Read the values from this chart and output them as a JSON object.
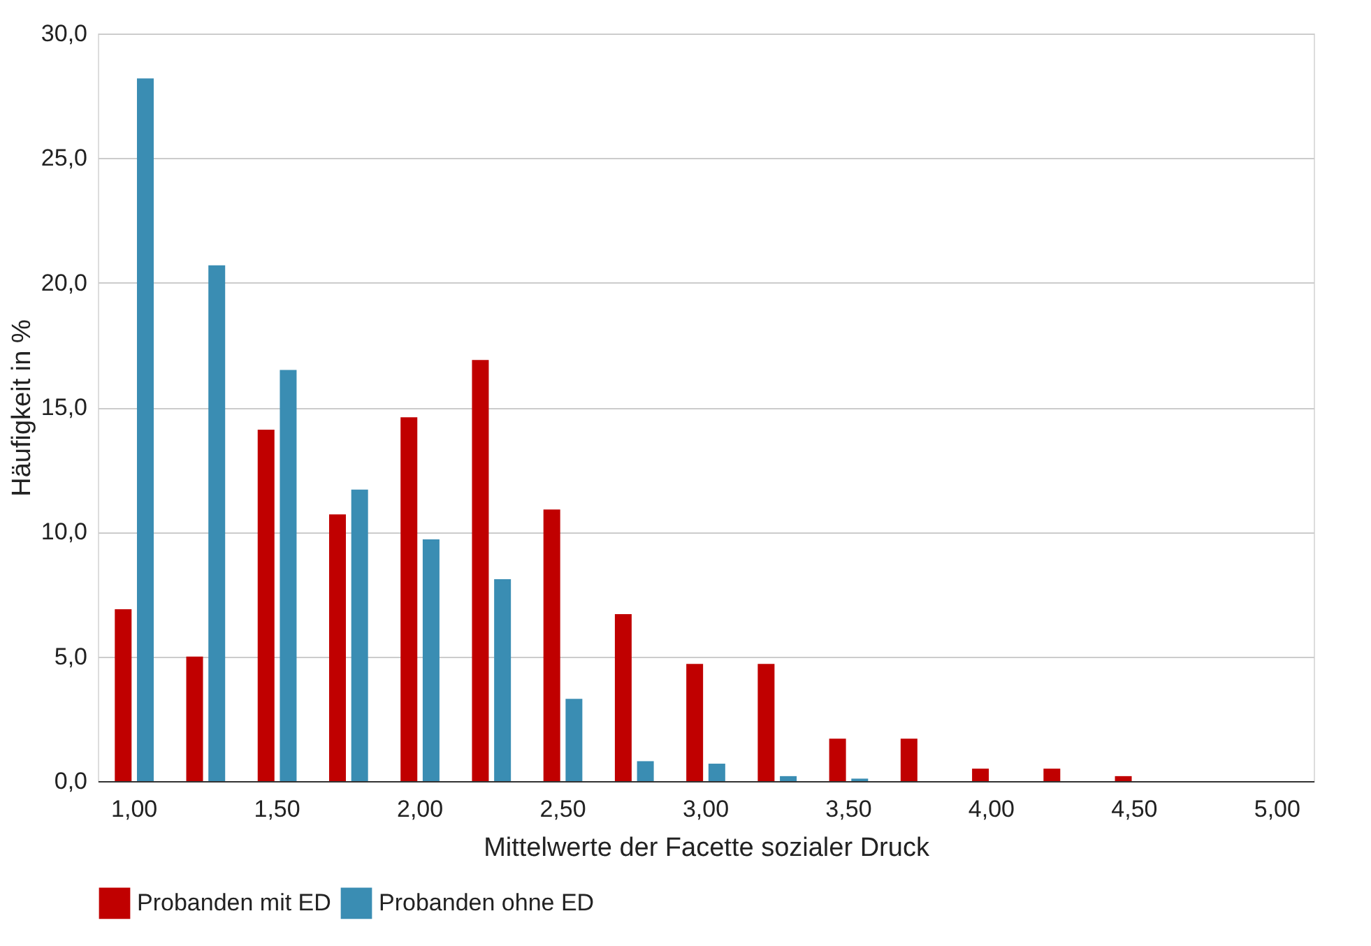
{
  "chart_data": {
    "type": "bar",
    "xlabel": "Mittelwerte der Facette sozialer Druck",
    "ylabel": "Häufigkeit in %",
    "categories": [
      "1,00",
      null,
      "1,50",
      null,
      "2,00",
      null,
      "2,50",
      null,
      "3,00",
      null,
      "3,50",
      null,
      "4,00",
      null,
      "4,50",
      null,
      "5,00"
    ],
    "series": [
      {
        "name": "Probanden mit ED",
        "color": "#c00000",
        "values": [
          6.9,
          5.0,
          14.1,
          10.7,
          14.6,
          16.9,
          10.9,
          6.7,
          4.7,
          4.7,
          1.7,
          1.7,
          0.5,
          0.5,
          0.2,
          0,
          0
        ]
      },
      {
        "name": "Probanden ohne ED",
        "color": "#3a8db3",
        "values": [
          28.2,
          20.7,
          16.5,
          11.7,
          9.7,
          8.1,
          3.3,
          0.8,
          0.7,
          0.2,
          0.1,
          0,
          0,
          0,
          0,
          0,
          0
        ]
      }
    ],
    "ylim": [
      0,
      30
    ],
    "yticks": [
      {
        "value": 0,
        "label": "0,0"
      },
      {
        "value": 5,
        "label": "5,0"
      },
      {
        "value": 10,
        "label": "10,0"
      },
      {
        "value": 15,
        "label": "15,0"
      },
      {
        "value": 20,
        "label": "20,0"
      },
      {
        "value": 25,
        "label": "25,0"
      },
      {
        "value": 30,
        "label": "30,0"
      }
    ],
    "grid": "y",
    "legend": "bottom"
  }
}
